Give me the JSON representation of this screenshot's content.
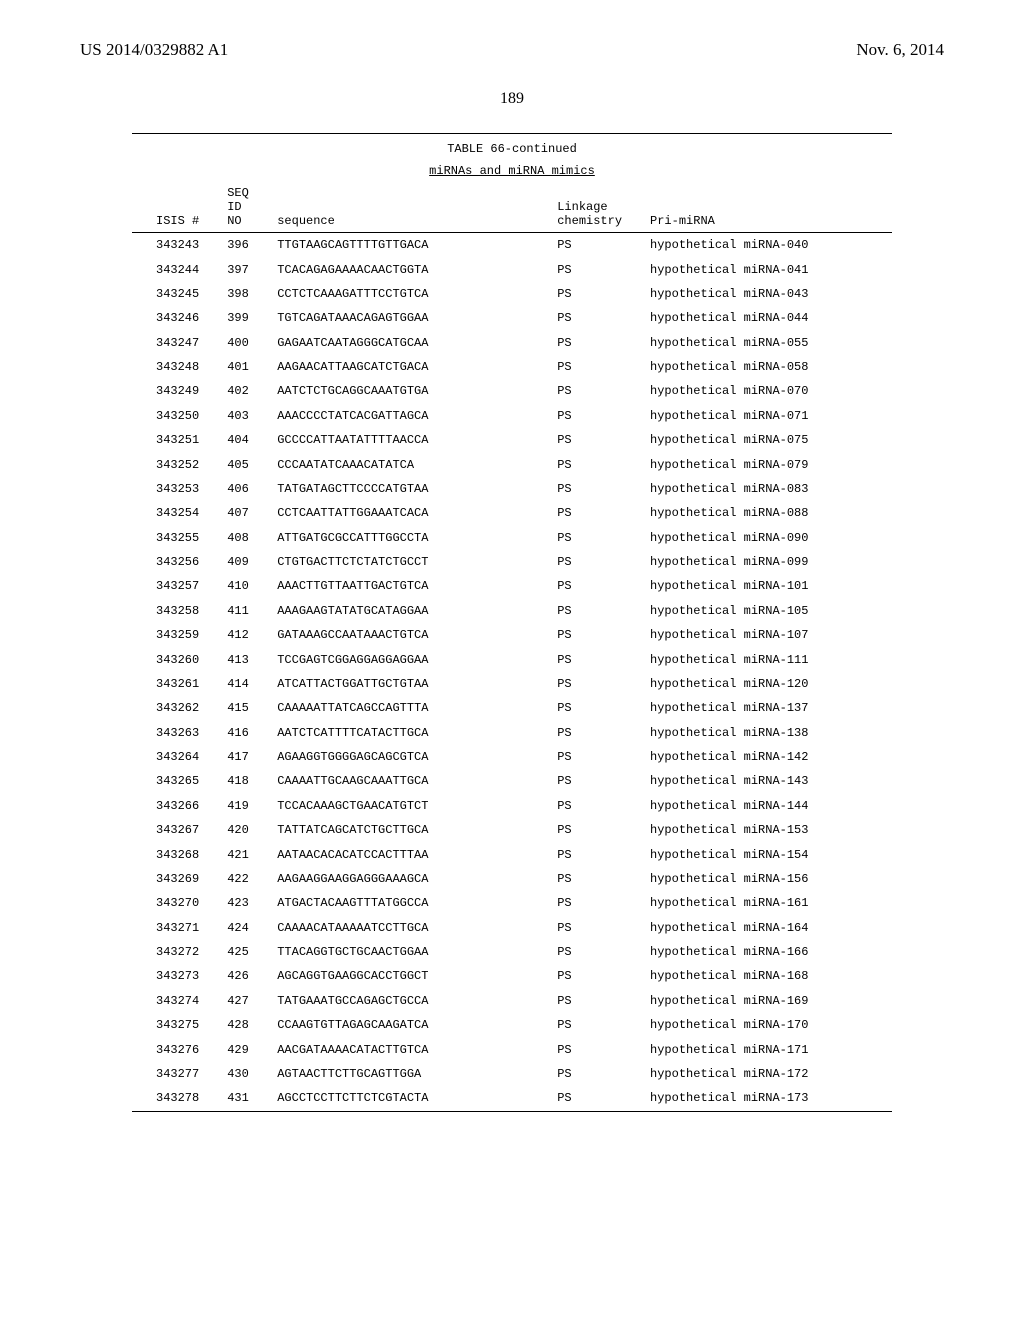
{
  "header": {
    "left": "US 2014/0329882 A1",
    "right": "Nov. 6, 2014"
  },
  "page_number": "189",
  "table": {
    "caption": "TABLE 66-continued",
    "subtitle": "miRNAs and miRNA mimics",
    "columns": {
      "isis": "ISIS #",
      "seq_line1": "SEQ",
      "seq_line2": "ID",
      "seq_line3": "NO",
      "sequence": "sequence",
      "linkage_line1": "Linkage",
      "linkage_line2": "chemistry",
      "pri": "Pri-miRNA"
    },
    "rows": [
      {
        "isis": "343243",
        "seq": "396",
        "sequence": "TTGTAAGCAGTTTTGTTGACA",
        "linkage": "PS",
        "pri": "hypothetical miRNA-040"
      },
      {
        "isis": "343244",
        "seq": "397",
        "sequence": "TCACAGAGAAAACAACTGGTA",
        "linkage": "PS",
        "pri": "hypothetical miRNA-041"
      },
      {
        "isis": "343245",
        "seq": "398",
        "sequence": "CCTCTCAAAGATTTCCTGTCA",
        "linkage": "PS",
        "pri": "hypothetical miRNA-043"
      },
      {
        "isis": "343246",
        "seq": "399",
        "sequence": "TGTCAGATAAACAGAGTGGAA",
        "linkage": "PS",
        "pri": "hypothetical miRNA-044"
      },
      {
        "isis": "343247",
        "seq": "400",
        "sequence": "GAGAATCAATAGGGCATGCAA",
        "linkage": "PS",
        "pri": "hypothetical miRNA-055"
      },
      {
        "isis": "343248",
        "seq": "401",
        "sequence": "AAGAACATTAAGCATCTGACA",
        "linkage": "PS",
        "pri": "hypothetical miRNA-058"
      },
      {
        "isis": "343249",
        "seq": "402",
        "sequence": "AATCTCTGCAGGCAAATGTGA",
        "linkage": "PS",
        "pri": "hypothetical miRNA-070"
      },
      {
        "isis": "343250",
        "seq": "403",
        "sequence": "AAACCCCTATCACGATTAGCA",
        "linkage": "PS",
        "pri": "hypothetical miRNA-071"
      },
      {
        "isis": "343251",
        "seq": "404",
        "sequence": "GCCCCATTAATATTTTAACCA",
        "linkage": "PS",
        "pri": "hypothetical miRNA-075"
      },
      {
        "isis": "343252",
        "seq": "405",
        "sequence": "CCCAATATCAAACATATCA",
        "linkage": "PS",
        "pri": "hypothetical miRNA-079"
      },
      {
        "isis": "343253",
        "seq": "406",
        "sequence": "TATGATAGCTTCCCCATGTAA",
        "linkage": "PS",
        "pri": "hypothetical miRNA-083"
      },
      {
        "isis": "343254",
        "seq": "407",
        "sequence": "CCTCAATTATTGGAAATCACA",
        "linkage": "PS",
        "pri": "hypothetical miRNA-088"
      },
      {
        "isis": "343255",
        "seq": "408",
        "sequence": "ATTGATGCGCCATTTGGCCTA",
        "linkage": "PS",
        "pri": "hypothetical miRNA-090"
      },
      {
        "isis": "343256",
        "seq": "409",
        "sequence": "CTGTGACTTCTCTATCTGCCT",
        "linkage": "PS",
        "pri": "hypothetical miRNA-099"
      },
      {
        "isis": "343257",
        "seq": "410",
        "sequence": "AAACTTGTTAATTGACTGTCA",
        "linkage": "PS",
        "pri": "hypothetical miRNA-101"
      },
      {
        "isis": "343258",
        "seq": "411",
        "sequence": "AAAGAAGTATATGCATAGGAA",
        "linkage": "PS",
        "pri": "hypothetical miRNA-105"
      },
      {
        "isis": "343259",
        "seq": "412",
        "sequence": "GATAAAGCCAATAAACTGTCA",
        "linkage": "PS",
        "pri": "hypothetical miRNA-107"
      },
      {
        "isis": "343260",
        "seq": "413",
        "sequence": "TCCGAGTCGGAGGAGGAGGAA",
        "linkage": "PS",
        "pri": "hypothetical miRNA-111"
      },
      {
        "isis": "343261",
        "seq": "414",
        "sequence": "ATCATTACTGGATTGCTGTAA",
        "linkage": "PS",
        "pri": "hypothetical miRNA-120"
      },
      {
        "isis": "343262",
        "seq": "415",
        "sequence": "CAAAAATTATCAGCCAGTTTA",
        "linkage": "PS",
        "pri": "hypothetical miRNA-137"
      },
      {
        "isis": "343263",
        "seq": "416",
        "sequence": "AATCTCATTTTCATACTTGCA",
        "linkage": "PS",
        "pri": "hypothetical miRNA-138"
      },
      {
        "isis": "343264",
        "seq": "417",
        "sequence": "AGAAGGTGGGGAGCAGCGTCA",
        "linkage": "PS",
        "pri": "hypothetical miRNA-142"
      },
      {
        "isis": "343265",
        "seq": "418",
        "sequence": "CAAAATTGCAAGCAAATTGCA",
        "linkage": "PS",
        "pri": "hypothetical miRNA-143"
      },
      {
        "isis": "343266",
        "seq": "419",
        "sequence": "TCCACAAAGCTGAACATGTCT",
        "linkage": "PS",
        "pri": "hypothetical miRNA-144"
      },
      {
        "isis": "343267",
        "seq": "420",
        "sequence": "TATTATCAGCATCTGCTTGCA",
        "linkage": "PS",
        "pri": "hypothetical miRNA-153"
      },
      {
        "isis": "343268",
        "seq": "421",
        "sequence": "AATAACACACATCCACTTTAA",
        "linkage": "PS",
        "pri": "hypothetical miRNA-154"
      },
      {
        "isis": "343269",
        "seq": "422",
        "sequence": "AAGAAGGAAGGAGGGAAAGCA",
        "linkage": "PS",
        "pri": "hypothetical miRNA-156"
      },
      {
        "isis": "343270",
        "seq": "423",
        "sequence": "ATGACTACAAGTTTATGGCCA",
        "linkage": "PS",
        "pri": "hypothetical miRNA-161"
      },
      {
        "isis": "343271",
        "seq": "424",
        "sequence": "CAAAACATAAAAATCCTTGCA",
        "linkage": "PS",
        "pri": "hypothetical miRNA-164"
      },
      {
        "isis": "343272",
        "seq": "425",
        "sequence": "TTACAGGTGCTGCAACTGGAA",
        "linkage": "PS",
        "pri": "hypothetical miRNA-166"
      },
      {
        "isis": "343273",
        "seq": "426",
        "sequence": "AGCAGGTGAAGGCACCTGGCT",
        "linkage": "PS",
        "pri": "hypothetical miRNA-168"
      },
      {
        "isis": "343274",
        "seq": "427",
        "sequence": "TATGAAATGCCAGAGCTGCCA",
        "linkage": "PS",
        "pri": "hypothetical miRNA-169"
      },
      {
        "isis": "343275",
        "seq": "428",
        "sequence": "CCAAGTGTTAGAGCAAGATCA",
        "linkage": "PS",
        "pri": "hypothetical miRNA-170"
      },
      {
        "isis": "343276",
        "seq": "429",
        "sequence": "AACGATAAAACATACTTGTCA",
        "linkage": "PS",
        "pri": "hypothetical miRNA-171"
      },
      {
        "isis": "343277",
        "seq": "430",
        "sequence": "AGTAACTTCTTGCAGTTGGA",
        "linkage": "PS",
        "pri": "hypothetical miRNA-172"
      },
      {
        "isis": "343278",
        "seq": "431",
        "sequence": "AGCCTCCTTCTTCTCGTACTA",
        "linkage": "PS",
        "pri": "hypothetical miRNA-173"
      }
    ]
  }
}
